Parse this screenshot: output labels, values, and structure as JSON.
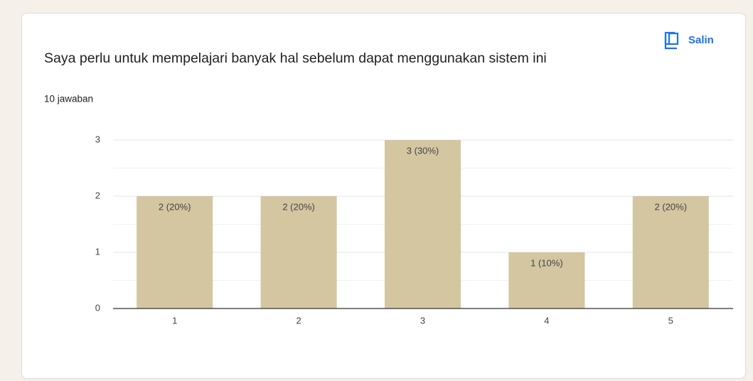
{
  "button": "Salin",
  "chart_data": {
    "type": "bar",
    "title": "Saya perlu untuk mempelajari banyak hal sebelum dapat menggunakan sistem ini",
    "subtitle": "10 jawaban",
    "categories": [
      "1",
      "2",
      "3",
      "4",
      "5"
    ],
    "values": [
      2,
      2,
      3,
      1,
      2
    ],
    "value_labels": [
      "2 (20%)",
      "2 (20%)",
      "3 (30%)",
      "1 (10%)",
      "2 (20%)"
    ],
    "color": "#d3c6a1",
    "ylim": [
      0,
      3
    ],
    "yticks": [
      0,
      1,
      2,
      3
    ],
    "minor_yticks": [
      0.5,
      1.5,
      2.5
    ],
    "grid": true
  }
}
